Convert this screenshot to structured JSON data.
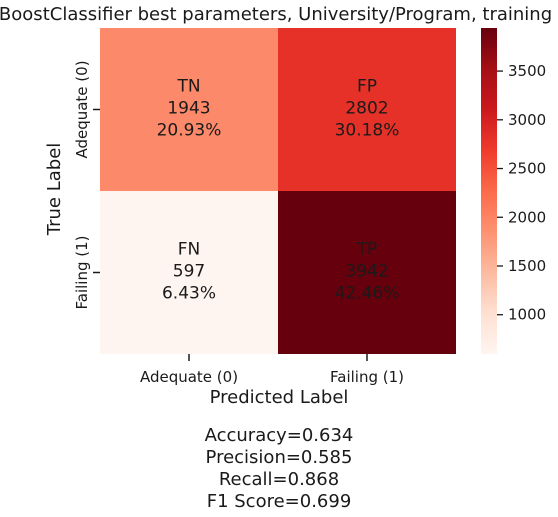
{
  "chart_data": {
    "type": "heatmap",
    "title": "XGBoostClassifier best parameters, University/Program, training set",
    "xlabel": "Predicted Label",
    "ylabel": "True Label",
    "x_categories": [
      "Adequate (0)",
      "Failing (1)"
    ],
    "y_categories": [
      "Adequate (0)",
      "Failing (1)"
    ],
    "cells": [
      [
        {
          "tag": "TN",
          "value": 1943,
          "pct": "20.93%"
        },
        {
          "tag": "FP",
          "value": 2802,
          "pct": "30.18%"
        }
      ],
      [
        {
          "tag": "FN",
          "value": 597,
          "pct": "6.43%"
        },
        {
          "tag": "TP",
          "value": 3942,
          "pct": "42.46%"
        }
      ]
    ],
    "colorbar": {
      "colormap": "Reds",
      "range": [
        597,
        3942
      ],
      "ticks": [
        1000,
        1500,
        2000,
        2500,
        3000,
        3500
      ]
    },
    "metrics": [
      "Accuracy=0.634",
      "Precision=0.585",
      "Recall=0.868",
      "F1 Score=0.699"
    ]
  }
}
